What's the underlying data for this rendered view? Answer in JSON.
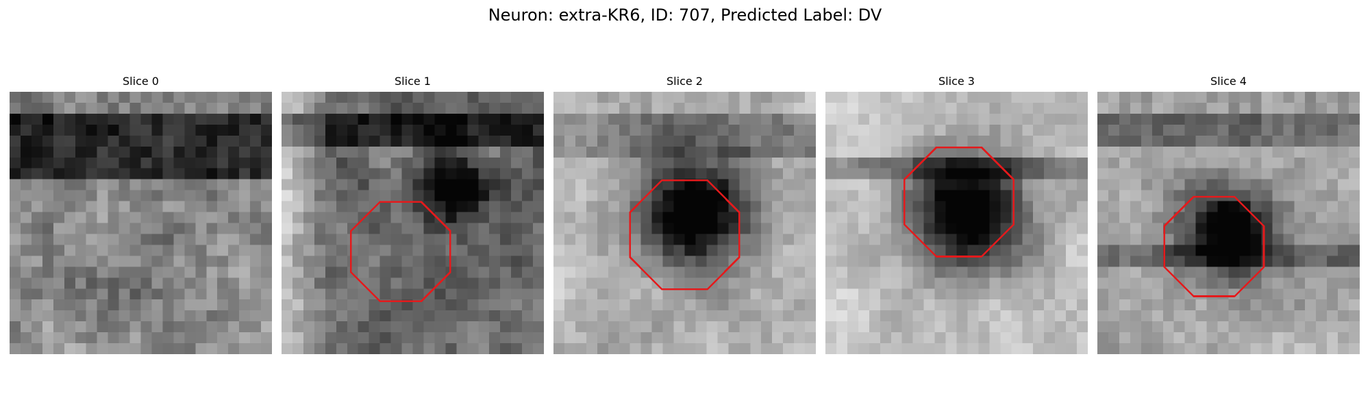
{
  "figure": {
    "title": "Neuron: extra-KR6, ID: 707, Predicted Label: DV"
  },
  "colors": {
    "background": "#ffffff",
    "roi_outline": "#e41a1c",
    "colormap": "grayscale"
  },
  "panels": [
    {
      "title": "Slice 0",
      "roi": null
    },
    {
      "title": "Slice 1",
      "roi": {
        "shape": "octagon"
      }
    },
    {
      "title": "Slice 2",
      "roi": {
        "shape": "octagon"
      }
    },
    {
      "title": "Slice 3",
      "roi": {
        "shape": "octagon"
      }
    },
    {
      "title": "Slice 4",
      "roi": {
        "shape": "octagon"
      }
    }
  ]
}
